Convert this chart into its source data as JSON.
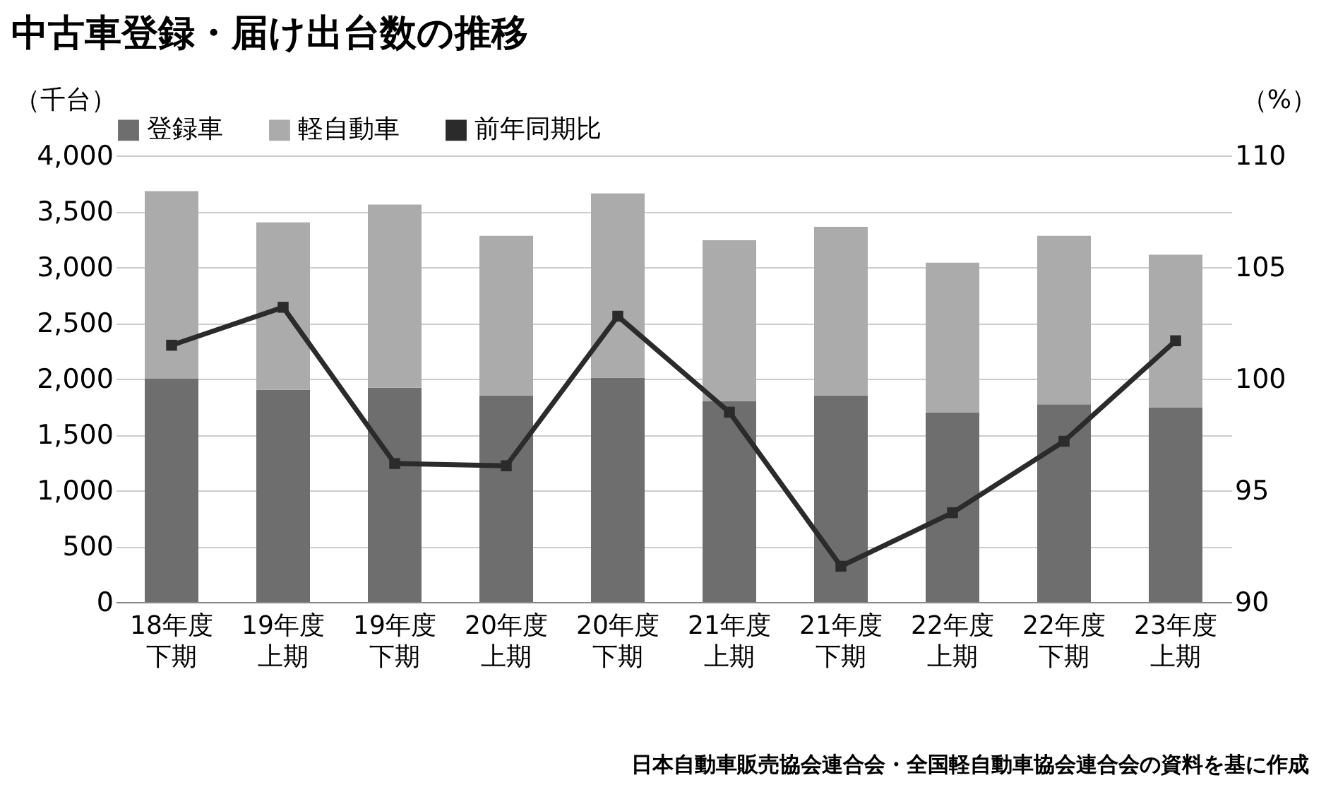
{
  "chart_data": {
    "type": "bar",
    "title": "中古車登録・届け出台数の推移",
    "ylabel": "（千台）",
    "y2label": "（%）",
    "categories": [
      "18年度下期",
      "19年度上期",
      "19年度下期",
      "20年度上期",
      "20年度下期",
      "21年度上期",
      "21年度下期",
      "22年度上期",
      "22年度下期",
      "23年度上期"
    ],
    "stacked": true,
    "series": [
      {
        "name": "登録車",
        "color": "#6e6e6e",
        "values": [
          2000,
          1900,
          1920,
          1850,
          2010,
          1800,
          1850,
          1700,
          1770,
          1740
        ]
      },
      {
        "name": "軽自動車",
        "color": "#ababab",
        "values": [
          1680,
          1500,
          1640,
          1430,
          1650,
          1440,
          1510,
          1340,
          1510,
          1370
        ]
      },
      {
        "name": "前年同期比",
        "type": "line",
        "axis": "y2",
        "color": "#2b2b2b",
        "marker": "square",
        "line_style": "solid",
        "values": [
          101.5,
          103.2,
          96.2,
          96.1,
          102.8,
          98.5,
          91.6,
          94.0,
          97.2,
          101.7
        ]
      }
    ],
    "ylim": [
      0,
      4000
    ],
    "yticks": [
      0,
      {
        "value": 500,
        "label": "500"
      },
      {
        "value": 1000,
        "label": "1,000"
      },
      {
        "value": 1500,
        "label": "1,500"
      },
      {
        "value": 2000,
        "label": "2,000"
      },
      {
        "value": 2500,
        "label": "2,500"
      },
      {
        "value": 3000,
        "label": "3,000"
      },
      {
        "value": 3500,
        "label": "3,500"
      },
      {
        "value": 4000,
        "label": "4,000"
      }
    ],
    "y2lim": [
      90,
      110
    ],
    "y2ticks": [
      90,
      95,
      100,
      105,
      110
    ],
    "grid": "y",
    "legend": "top",
    "annotations": [
      "日本自動車販売協会連合会・全国軽自動車協会連合会の資料を基に作成"
    ]
  }
}
